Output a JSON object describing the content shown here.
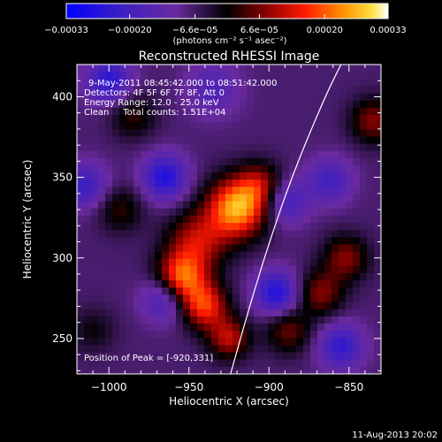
{
  "chart_data": {
    "type": "heatmap",
    "title": "Reconstructed RHESSI Image",
    "xlabel": "Heliocentric X (arcsec)",
    "ylabel": "Heliocentric Y (arcsec)",
    "xlim": [
      -1020,
      -830
    ],
    "ylim": [
      228,
      420
    ],
    "x_ticks": [
      {
        "value": -1000,
        "label": "−1000"
      },
      {
        "value": -950,
        "label": "−950"
      },
      {
        "value": -900,
        "label": "−900"
      },
      {
        "value": -850,
        "label": "−850"
      }
    ],
    "y_ticks": [
      {
        "value": 250,
        "label": "250"
      },
      {
        "value": 300,
        "label": "300"
      },
      {
        "value": 350,
        "label": "350"
      },
      {
        "value": 400,
        "label": "400"
      }
    ],
    "colorbar": {
      "range": [
        -0.00033,
        0.00033
      ],
      "ticks": [
        {
          "value": -0.00033,
          "label": "−0.00033"
        },
        {
          "value": -0.0002,
          "label": "−0.00020"
        },
        {
          "value": -6.6e-05,
          "label": "−6.6e−05"
        },
        {
          "value": 6.6e-05,
          "label": "6.6e−05"
        },
        {
          "value": 0.0002,
          "label": "0.00020"
        },
        {
          "value": 0.00033,
          "label": "0.00033"
        }
      ],
      "unit_label": "(photons cm⁻² s⁻¹ asec⁻²)"
    },
    "annotations": [
      "9-May-2011 08:45:42.000 to 08:51:42.000",
      "Detectors: 4F 5F 6F 7F 8F, Att 0",
      "Energy Range: 12.0 - 25.0 keV",
      "Clean     Total counts: 1.51E+04"
    ],
    "peak_label": "Position of Peak = [-920,331]",
    "peak": [
      -920,
      331
    ],
    "limb_points": [
      [
        -924,
        228
      ],
      [
        -915,
        260
      ],
      [
        -903,
        300
      ],
      [
        -886,
        350
      ],
      [
        -865,
        400
      ],
      [
        -855,
        420
      ]
    ],
    "sources": [
      {
        "x": -920,
        "y": 331,
        "amp": 1.0,
        "s": 13
      },
      {
        "x": -905,
        "y": 345,
        "amp": 0.45,
        "s": 10
      },
      {
        "x": -945,
        "y": 310,
        "amp": 0.55,
        "s": 13
      },
      {
        "x": -955,
        "y": 287,
        "amp": 0.85,
        "s": 11
      },
      {
        "x": -940,
        "y": 270,
        "amp": 0.7,
        "s": 10
      },
      {
        "x": -925,
        "y": 250,
        "amp": 0.55,
        "s": 9
      },
      {
        "x": -852,
        "y": 300,
        "amp": 0.45,
        "s": 10
      },
      {
        "x": -868,
        "y": 278,
        "amp": 0.45,
        "s": 10
      },
      {
        "x": -888,
        "y": 255,
        "amp": 0.4,
        "s": 10
      },
      {
        "x": -835,
        "y": 385,
        "amp": 0.45,
        "s": 10
      },
      {
        "x": -985,
        "y": 388,
        "amp": 0.3,
        "s": 10
      },
      {
        "x": -993,
        "y": 330,
        "amp": 0.3,
        "s": 10
      },
      {
        "x": -1010,
        "y": 255,
        "amp": 0.2,
        "s": 10
      },
      {
        "x": -1000,
        "y": 410,
        "amp": -0.55,
        "s": 10
      },
      {
        "x": -965,
        "y": 350,
        "amp": -0.6,
        "s": 10
      },
      {
        "x": -1015,
        "y": 345,
        "amp": -0.45,
        "s": 10
      },
      {
        "x": -965,
        "y": 275,
        "amp": -0.5,
        "s": 10
      },
      {
        "x": -895,
        "y": 278,
        "amp": -0.6,
        "s": 10
      },
      {
        "x": -890,
        "y": 335,
        "amp": -0.45,
        "s": 10
      },
      {
        "x": -862,
        "y": 348,
        "amp": -0.4,
        "s": 10
      },
      {
        "x": -855,
        "y": 245,
        "amp": -0.5,
        "s": 10
      },
      {
        "x": -935,
        "y": 405,
        "amp": -0.3,
        "s": 12
      }
    ]
  },
  "footer": {
    "timestamp": "11-Aug-2013 20:02"
  }
}
